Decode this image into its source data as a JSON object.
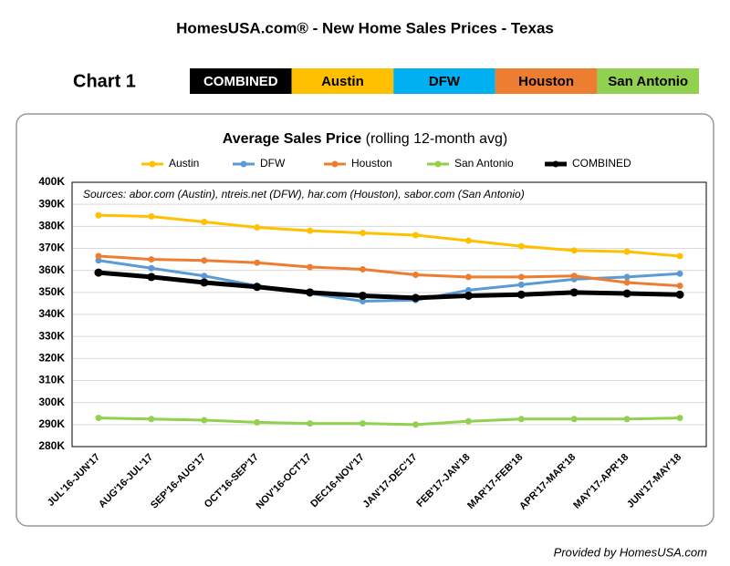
{
  "header": {
    "title": "HomesUSA.com® - New Home Sales Prices - Texas",
    "chart_label": "Chart 1",
    "tabs": [
      {
        "label": "COMBINED",
        "color": "#000000"
      },
      {
        "label": "Austin",
        "color": "#FFC000"
      },
      {
        "label": "DFW",
        "color": "#00B0F0"
      },
      {
        "label": "Houston",
        "color": "#ED7D31"
      },
      {
        "label": "San Antonio",
        "color": "#92D050"
      }
    ]
  },
  "chart_data": {
    "type": "line",
    "title": "Average Sales Price",
    "subtitle": "(rolling 12-month avg)",
    "annotation": "Sources:  abor.com (Austin), ntreis.net (DFW), har.com (Houston), sabor.com (San Antonio)",
    "categories": [
      "JUL'16-JUN'17",
      "AUG'16-JUL'17",
      "SEP'16-AUG'17",
      "OCT'16-SEP'17",
      "NOV'16-OCT'17",
      "DEC16-NOV'17",
      "JAN'17-DEC'17",
      "FEB'17-JAN'18",
      "MAR'17-FEB'18",
      "APR'17-MAR'18",
      "MAY'17-APR'18",
      "JUN'17-MAY'18"
    ],
    "series": [
      {
        "name": "Austin",
        "color": "#FFC000",
        "values": [
          385000,
          384500,
          382000,
          379500,
          378000,
          377000,
          376000,
          373500,
          371000,
          369000,
          368500,
          366500
        ]
      },
      {
        "name": "DFW",
        "color": "#5B9BD5",
        "values": [
          364500,
          361000,
          357500,
          353000,
          349500,
          346000,
          346500,
          351000,
          353500,
          356000,
          357000,
          358500
        ]
      },
      {
        "name": "Houston",
        "color": "#ED7D31",
        "values": [
          366500,
          365000,
          364500,
          363500,
          361500,
          360500,
          358000,
          357000,
          357000,
          357500,
          354500,
          353000
        ]
      },
      {
        "name": "San Antonio",
        "color": "#92D050",
        "values": [
          293000,
          292500,
          292000,
          291000,
          290500,
          290500,
          290000,
          291500,
          292500,
          292500,
          292500,
          293000
        ]
      },
      {
        "name": "COMBINED",
        "color": "#000000",
        "values": [
          359000,
          357000,
          354500,
          352500,
          350000,
          348500,
          347500,
          348500,
          349000,
          350000,
          349500,
          349000
        ]
      }
    ],
    "ylim": [
      280000,
      400000
    ],
    "yticks": [
      {
        "value": 280000,
        "label": "280K"
      },
      {
        "value": 290000,
        "label": "290K"
      },
      {
        "value": 300000,
        "label": "300K"
      },
      {
        "value": 310000,
        "label": "310K"
      },
      {
        "value": 320000,
        "label": "320K"
      },
      {
        "value": 330000,
        "label": "330K"
      },
      {
        "value": 340000,
        "label": "340K"
      },
      {
        "value": 350000,
        "label": "350K"
      },
      {
        "value": 360000,
        "label": "360K"
      },
      {
        "value": 370000,
        "label": "370K"
      },
      {
        "value": 380000,
        "label": "380K"
      },
      {
        "value": 390000,
        "label": "390K"
      },
      {
        "value": 400000,
        "label": "400K"
      }
    ],
    "grid": true
  },
  "footer": "Provided by HomesUSA.com"
}
